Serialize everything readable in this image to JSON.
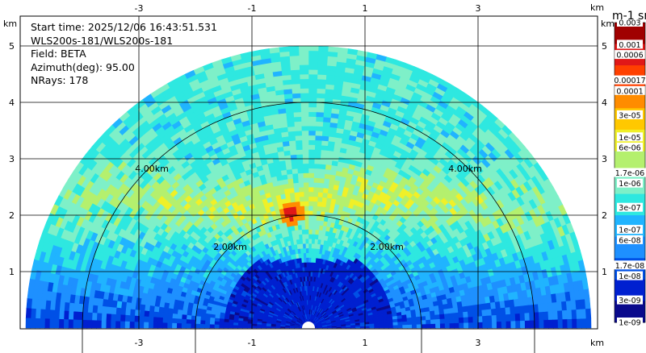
{
  "info": {
    "start_time": "Start time: 2025/12/06 16:43:51.531",
    "instrument": "WLS200s-181/WLS200s-181",
    "field": "Field: BETA",
    "azimuth": "Azimuth(deg): 95.00",
    "nrays": "NRays: 178"
  },
  "colors": {
    "scale": [
      "#0a0a8c",
      "#0020d0",
      "#0050e6",
      "#1e90ff",
      "#20b4ff",
      "#2ee8e0",
      "#7ef0c8",
      "#b4f06e",
      "#f0f028",
      "#ffc800",
      "#ff8c00",
      "#ff4000",
      "#e01818",
      "#a00000"
    ]
  },
  "chart_data": {
    "type": "heatmap",
    "title": "",
    "xlabel": "km",
    "ylabel": "km",
    "xlim": [
      -5,
      5
    ],
    "ylim": [
      0,
      5.6
    ],
    "x_ticks": [
      -3,
      -1,
      1,
      3
    ],
    "y_ticks": [
      1,
      2,
      3,
      4,
      5
    ],
    "x_tick_labels": [
      "-3",
      "-1",
      "1",
      "3"
    ],
    "y_tick_labels": [
      "1",
      "2",
      "3",
      "4",
      "5"
    ],
    "unit_label_x": "km",
    "unit_label_y": "km",
    "max_range_km": 5.0,
    "range_rings": [
      {
        "radius": 2.0,
        "label": "2.00km"
      },
      {
        "radius": 4.0,
        "label": "4.00km"
      }
    ],
    "colorbar": {
      "title": "m-1 sr-1",
      "scale": "log",
      "tick_labels": [
        "0.003",
        "0.001",
        "0.0006",
        "0.00017",
        "0.0001",
        "3e-05",
        "1e-05",
        "6e-06",
        "1.7e-06",
        "1e-06",
        "3e-07",
        "1e-07",
        "6e-08",
        "1.7e-08",
        "1e-08",
        "3e-09",
        "1e-09"
      ],
      "tick_values": [
        0.003,
        0.001,
        0.0006,
        0.00017,
        0.0001,
        3e-05,
        1e-05,
        6e-06,
        1.7e-06,
        1e-06,
        3e-07,
        1e-07,
        6e-08,
        1.7e-08,
        1e-08,
        3e-09,
        1e-09
      ],
      "min": 1e-09,
      "max": 0.003
    },
    "field_structure": {
      "description_values_log10": {
        "near_surface": -8.0,
        "boundary_layer_band_height_km": 2.25,
        "band_peak": -5.3,
        "background_aloft": -6.3,
        "hotspot": {
          "x": -0.3,
          "y": 2.05,
          "value": -3.0
        }
      }
    }
  }
}
